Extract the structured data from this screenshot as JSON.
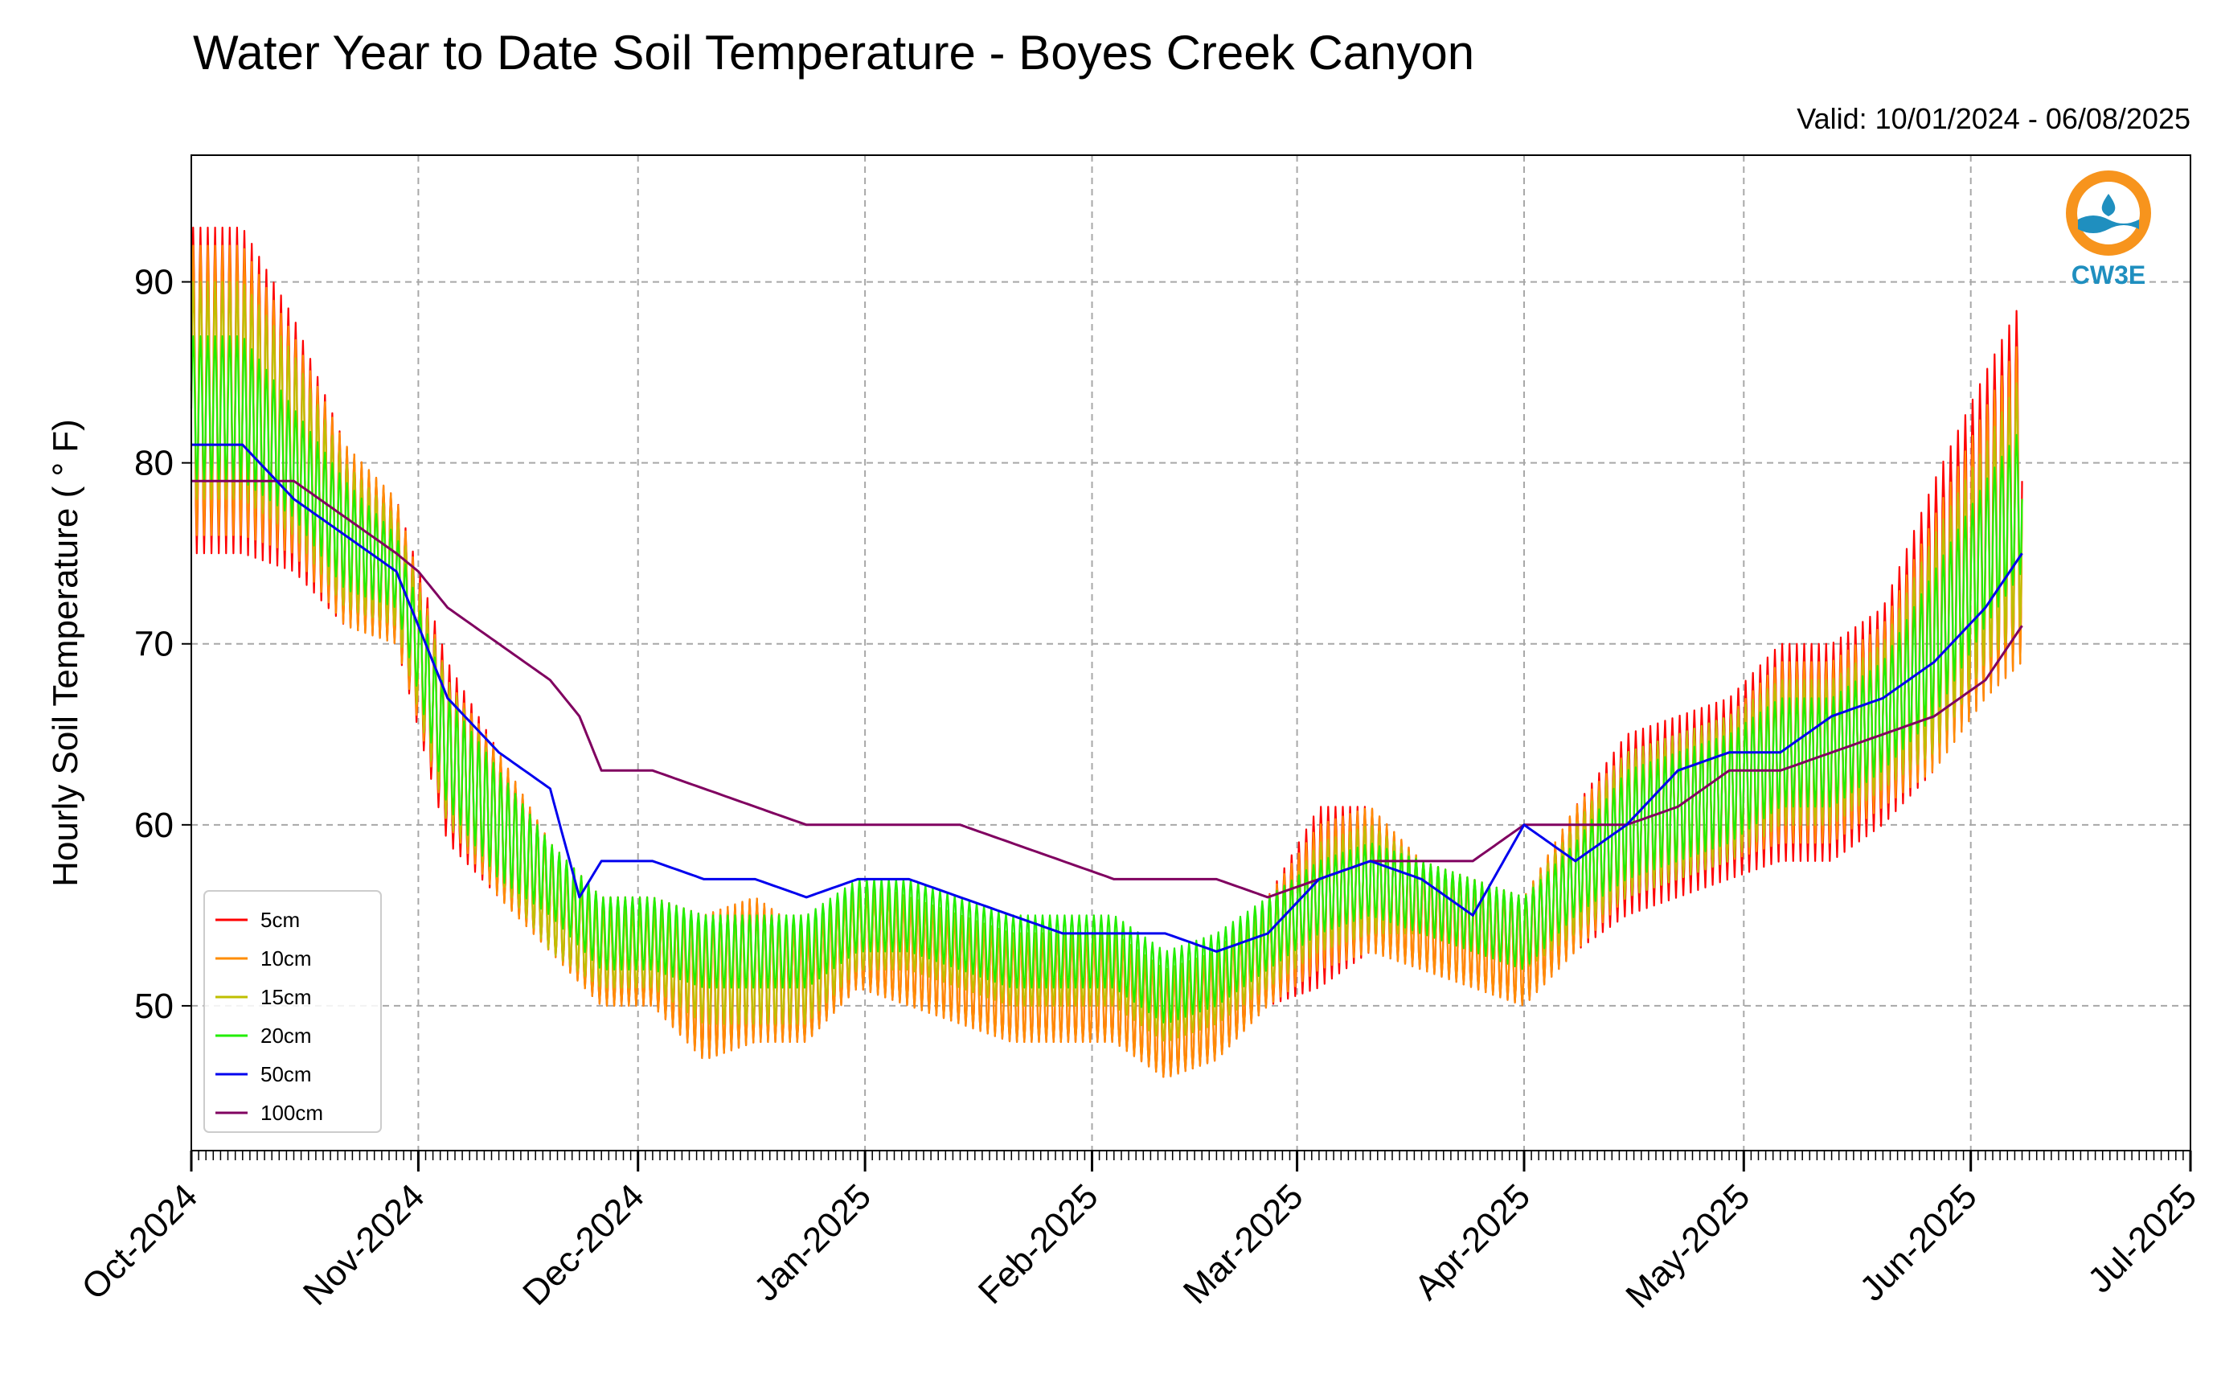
{
  "chart_data": {
    "type": "line",
    "title": "Water Year to Date Soil Temperature - Boyes Creek Canyon",
    "subtitle": "Valid: 10/01/2024 - 06/08/2025",
    "ylabel": "Hourly Soil Temperature ( ° F)",
    "xlabel": "",
    "xlim": [
      "2024-10-01",
      "2025-07-01"
    ],
    "ylim": [
      42,
      97
    ],
    "yticks": [
      50,
      60,
      70,
      80,
      90
    ],
    "xticks": [
      {
        "date": "2024-10-01",
        "label": "Oct-2024"
      },
      {
        "date": "2024-11-01",
        "label": "Nov-2024"
      },
      {
        "date": "2024-12-01",
        "label": "Dec-2024"
      },
      {
        "date": "2025-01-01",
        "label": "Jan-2025"
      },
      {
        "date": "2025-02-01",
        "label": "Feb-2025"
      },
      {
        "date": "2025-03-01",
        "label": "Mar-2025"
      },
      {
        "date": "2025-04-01",
        "label": "Apr-2025"
      },
      {
        "date": "2025-05-01",
        "label": "May-2025"
      },
      {
        "date": "2025-06-01",
        "label": "Jun-2025"
      },
      {
        "date": "2025-07-01",
        "label": "Jul-2025"
      }
    ],
    "grid": true,
    "legend_position": "lower-left",
    "logo": {
      "text": "CW3E",
      "ring_color": "#f7941d",
      "wave_color": "#1f8fbf"
    },
    "series": [
      {
        "name": "5cm",
        "color": "#ff0000",
        "dates": [
          "2024-10-01",
          "2024-10-08",
          "2024-10-15",
          "2024-10-22",
          "2024-10-29",
          "2024-11-05",
          "2024-11-12",
          "2024-11-19",
          "2024-11-26",
          "2024-12-03",
          "2024-12-10",
          "2024-12-17",
          "2024-12-24",
          "2024-12-31",
          "2025-01-07",
          "2025-01-14",
          "2025-01-21",
          "2025-01-28",
          "2025-02-04",
          "2025-02-11",
          "2025-02-18",
          "2025-02-25",
          "2025-03-04",
          "2025-03-11",
          "2025-03-18",
          "2025-03-25",
          "2025-04-01",
          "2025-04-08",
          "2025-04-15",
          "2025-04-22",
          "2025-04-29",
          "2025-05-06",
          "2025-05-13",
          "2025-05-20",
          "2025-05-27",
          "2025-06-03",
          "2025-06-08"
        ],
        "mean": [
          84,
          84,
          81,
          76,
          74,
          64,
          60,
          56,
          53,
          53,
          51,
          52,
          51,
          54,
          53,
          52,
          51,
          51,
          51,
          49,
          50,
          53,
          56,
          57,
          55,
          54,
          53,
          57,
          60,
          61,
          62,
          64,
          64,
          66,
          71,
          76,
          79
        ],
        "amp": [
          9,
          9,
          7,
          5,
          4,
          5,
          4,
          3,
          3,
          3,
          4,
          4,
          3,
          3,
          3,
          3,
          3,
          3,
          3,
          3,
          3,
          3,
          5,
          4,
          3,
          3,
          3,
          4,
          5,
          5,
          5,
          6,
          6,
          6,
          8,
          9,
          10
        ]
      },
      {
        "name": "10cm",
        "color": "#ff8c00",
        "dates": [
          "2024-10-01",
          "2024-10-08",
          "2024-10-15",
          "2024-10-22",
          "2024-10-29",
          "2024-11-05",
          "2024-11-12",
          "2024-11-19",
          "2024-11-26",
          "2024-12-03",
          "2024-12-10",
          "2024-12-17",
          "2024-12-24",
          "2024-12-31",
          "2025-01-07",
          "2025-01-14",
          "2025-01-21",
          "2025-01-28",
          "2025-02-04",
          "2025-02-11",
          "2025-02-18",
          "2025-02-25",
          "2025-03-04",
          "2025-03-11",
          "2025-03-18",
          "2025-03-25",
          "2025-04-01",
          "2025-04-08",
          "2025-04-15",
          "2025-04-22",
          "2025-04-29",
          "2025-05-06",
          "2025-05-13",
          "2025-05-20",
          "2025-05-27",
          "2025-06-03",
          "2025-06-08"
        ],
        "mean": [
          84,
          84,
          81,
          76,
          74,
          64,
          60,
          56,
          53,
          53,
          51,
          52,
          51,
          54,
          53,
          52,
          51,
          51,
          51,
          49,
          50,
          53,
          56,
          57,
          55,
          54,
          53,
          57,
          60,
          61,
          62,
          64,
          64,
          66,
          70,
          75,
          78
        ],
        "amp": [
          8,
          8,
          6,
          5,
          4,
          4,
          4,
          3,
          3,
          3,
          4,
          4,
          3,
          3,
          3,
          3,
          3,
          3,
          3,
          3,
          3,
          3,
          4,
          4,
          3,
          3,
          3,
          4,
          4,
          4,
          4,
          5,
          5,
          5,
          7,
          8,
          9
        ]
      },
      {
        "name": "15cm",
        "color": "#bfbf00",
        "dates": [
          "2024-10-01",
          "2024-10-08",
          "2024-10-15",
          "2024-10-22",
          "2024-10-29",
          "2024-11-05",
          "2024-11-12",
          "2024-11-19",
          "2024-11-26",
          "2024-12-03",
          "2024-12-10",
          "2024-12-17",
          "2024-12-24",
          "2024-12-31",
          "2025-01-07",
          "2025-01-14",
          "2025-01-21",
          "2025-01-28",
          "2025-02-04",
          "2025-02-11",
          "2025-02-18",
          "2025-02-25",
          "2025-03-04",
          "2025-03-11",
          "2025-03-18",
          "2025-03-25",
          "2025-04-01",
          "2025-04-08",
          "2025-04-15",
          "2025-04-22",
          "2025-04-29",
          "2025-05-06",
          "2025-05-13",
          "2025-05-20",
          "2025-05-27",
          "2025-06-03",
          "2025-06-08"
        ],
        "mean": [
          84,
          84,
          81,
          76,
          74,
          64,
          60,
          56,
          53,
          53,
          52,
          52,
          52,
          54,
          54,
          53,
          52,
          52,
          52,
          50,
          51,
          53,
          56,
          57,
          56,
          55,
          54,
          57,
          60,
          61,
          62,
          64,
          64,
          66,
          70,
          75,
          78
        ],
        "amp": [
          6,
          6,
          5,
          4,
          3,
          4,
          3,
          3,
          2,
          2,
          3,
          3,
          3,
          2,
          2,
          2,
          2,
          2,
          2,
          2,
          2,
          2,
          3,
          3,
          2,
          2,
          2,
          3,
          4,
          4,
          4,
          4,
          4,
          4,
          6,
          6,
          7
        ]
      },
      {
        "name": "20cm",
        "color": "#22ee00",
        "dates": [
          "2024-10-01",
          "2024-10-08",
          "2024-10-15",
          "2024-10-22",
          "2024-10-29",
          "2024-11-05",
          "2024-11-12",
          "2024-11-19",
          "2024-11-26",
          "2024-12-03",
          "2024-12-10",
          "2024-12-17",
          "2024-12-24",
          "2024-12-31",
          "2025-01-07",
          "2025-01-14",
          "2025-01-21",
          "2025-01-28",
          "2025-02-04",
          "2025-02-11",
          "2025-02-18",
          "2025-02-25",
          "2025-03-04",
          "2025-03-11",
          "2025-03-18",
          "2025-03-25",
          "2025-04-01",
          "2025-04-08",
          "2025-04-15",
          "2025-04-22",
          "2025-04-29",
          "2025-05-06",
          "2025-05-13",
          "2025-05-20",
          "2025-05-27",
          "2025-06-03",
          "2025-06-08"
        ],
        "mean": [
          83,
          83,
          80,
          76,
          74,
          64,
          60,
          57,
          54,
          54,
          53,
          53,
          53,
          55,
          55,
          54,
          53,
          53,
          53,
          51,
          52,
          54,
          56,
          57,
          56,
          55,
          54,
          57,
          60,
          61,
          62,
          64,
          64,
          66,
          70,
          75,
          78
        ],
        "amp": [
          4,
          4,
          3,
          3,
          2,
          3,
          3,
          2,
          2,
          2,
          2,
          2,
          2,
          2,
          2,
          2,
          2,
          2,
          2,
          2,
          2,
          2,
          2,
          2,
          2,
          2,
          2,
          2,
          3,
          3,
          3,
          3,
          3,
          3,
          4,
          4,
          4
        ]
      },
      {
        "name": "50cm",
        "color": "#0000ee",
        "dates": [
          "2024-10-01",
          "2024-10-08",
          "2024-10-15",
          "2024-10-22",
          "2024-10-29",
          "2024-11-01",
          "2024-11-05",
          "2024-11-12",
          "2024-11-19",
          "2024-11-23",
          "2024-11-26",
          "2024-12-03",
          "2024-12-10",
          "2024-12-17",
          "2024-12-24",
          "2024-12-31",
          "2025-01-07",
          "2025-01-14",
          "2025-01-21",
          "2025-01-28",
          "2025-02-04",
          "2025-02-11",
          "2025-02-18",
          "2025-02-25",
          "2025-03-04",
          "2025-03-11",
          "2025-03-18",
          "2025-03-25",
          "2025-04-01",
          "2025-04-08",
          "2025-04-15",
          "2025-04-22",
          "2025-04-29",
          "2025-05-06",
          "2025-05-13",
          "2025-05-20",
          "2025-05-27",
          "2025-06-03",
          "2025-06-08"
        ],
        "values": [
          81,
          81,
          78,
          76,
          74,
          71,
          67,
          64,
          62,
          56,
          58,
          58,
          57,
          57,
          56,
          57,
          57,
          56,
          55,
          54,
          54,
          54,
          53,
          54,
          57,
          58,
          57,
          55,
          60,
          58,
          60,
          63,
          64,
          64,
          66,
          67,
          69,
          72,
          75
        ]
      },
      {
        "name": "100cm",
        "color": "#800060",
        "dates": [
          "2024-10-01",
          "2024-10-08",
          "2024-10-15",
          "2024-10-22",
          "2024-10-29",
          "2024-11-01",
          "2024-11-05",
          "2024-11-12",
          "2024-11-19",
          "2024-11-23",
          "2024-11-26",
          "2024-12-03",
          "2024-12-10",
          "2024-12-17",
          "2024-12-24",
          "2024-12-31",
          "2025-01-07",
          "2025-01-14",
          "2025-01-21",
          "2025-01-28",
          "2025-02-04",
          "2025-02-11",
          "2025-02-18",
          "2025-02-25",
          "2025-03-04",
          "2025-03-11",
          "2025-03-18",
          "2025-03-25",
          "2025-04-01",
          "2025-04-08",
          "2025-04-15",
          "2025-04-22",
          "2025-04-29",
          "2025-05-06",
          "2025-05-13",
          "2025-05-20",
          "2025-05-27",
          "2025-06-03",
          "2025-06-08"
        ],
        "values": [
          79,
          79,
          79,
          77,
          75,
          74,
          72,
          70,
          68,
          66,
          63,
          63,
          62,
          61,
          60,
          60,
          60,
          60,
          59,
          58,
          57,
          57,
          57,
          56,
          57,
          58,
          58,
          58,
          60,
          60,
          60,
          61,
          63,
          63,
          64,
          65,
          66,
          68,
          71
        ]
      }
    ]
  }
}
